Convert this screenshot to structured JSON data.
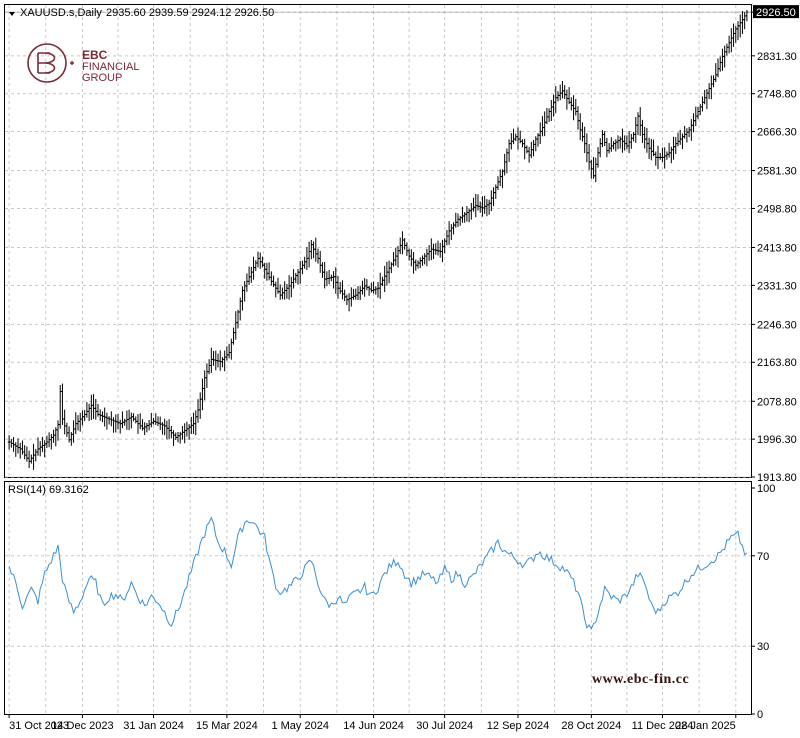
{
  "header": {
    "symbol": "XAUUSD.s,Daily",
    "ohlc": "2935.60 2939.59 2924.12 2926.50"
  },
  "logo": {
    "line1": "EBC",
    "line2": "FINANCIAL",
    "line3": "GROUP"
  },
  "watermark": "www.ebc-fin.cc",
  "colors": {
    "bars": "#000000",
    "rsi": "#3b8fd4",
    "grid": "#c8c8c8",
    "frame": "#000000",
    "brand": "#7b2a36"
  },
  "chart_data": [
    {
      "type": "ohlc",
      "title": "XAUUSD.s,Daily",
      "y_ticks": [
        "2926.50",
        "2831.30",
        "2748.80",
        "2666.30",
        "2581.30",
        "2498.80",
        "2413.80",
        "2331.30",
        "2246.30",
        "2163.80",
        "2078.80",
        "1996.30",
        "1913.80"
      ],
      "ylim": [
        1913.8,
        2942
      ],
      "current_price": "2926.50",
      "x_ticks": [
        "31 Oct 2023",
        "14 Dec 2023",
        "31 Jan 2024",
        "15 Mar 2024",
        "1 May 2024",
        "14 Jun 2024",
        "30 Jul 2024",
        "12 Sep 2024",
        "28 Oct 2024",
        "11 Dec 2024",
        "28 Jan 2025"
      ],
      "grid": true,
      "close_path": [
        [
          0,
          1990
        ],
        [
          5,
          1975
        ],
        [
          9,
          1948
        ],
        [
          13,
          1975
        ],
        [
          17,
          1990
        ],
        [
          20,
          2005
        ],
        [
          22,
          2028
        ],
        [
          23,
          2100
        ],
        [
          24,
          2040
        ],
        [
          27,
          1995
        ],
        [
          30,
          2030
        ],
        [
          34,
          2050
        ],
        [
          37,
          2070
        ],
        [
          40,
          2050
        ],
        [
          45,
          2040
        ],
        [
          50,
          2030
        ],
        [
          55,
          2045
        ],
        [
          60,
          2020
        ],
        [
          65,
          2035
        ],
        [
          70,
          2025
        ],
        [
          75,
          2000
        ],
        [
          79,
          2015
        ],
        [
          83,
          2030
        ],
        [
          85,
          2060
        ],
        [
          88,
          2130
        ],
        [
          91,
          2170
        ],
        [
          95,
          2165
        ],
        [
          99,
          2185
        ],
        [
          102,
          2250
        ],
        [
          105,
          2320
        ],
        [
          108,
          2350
        ],
        [
          112,
          2390
        ],
        [
          114,
          2375
        ],
        [
          118,
          2340
        ],
        [
          122,
          2310
        ],
        [
          126,
          2330
        ],
        [
          130,
          2360
        ],
        [
          134,
          2390
        ],
        [
          136,
          2420
        ],
        [
          139,
          2390
        ],
        [
          142,
          2345
        ],
        [
          146,
          2350
        ],
        [
          148,
          2325
        ],
        [
          152,
          2300
        ],
        [
          156,
          2310
        ],
        [
          160,
          2330
        ],
        [
          163,
          2320
        ],
        [
          166,
          2325
        ],
        [
          170,
          2360
        ],
        [
          174,
          2395
        ],
        [
          177,
          2430
        ],
        [
          180,
          2395
        ],
        [
          183,
          2375
        ],
        [
          187,
          2395
        ],
        [
          190,
          2410
        ],
        [
          194,
          2405
        ],
        [
          198,
          2450
        ],
        [
          202,
          2475
        ],
        [
          206,
          2490
        ],
        [
          210,
          2505
        ],
        [
          213,
          2500
        ],
        [
          216,
          2510
        ],
        [
          219,
          2545
        ],
        [
          222,
          2580
        ],
        [
          225,
          2640
        ],
        [
          228,
          2655
        ],
        [
          231,
          2640
        ],
        [
          234,
          2615
        ],
        [
          237,
          2650
        ],
        [
          240,
          2675
        ],
        [
          243,
          2710
        ],
        [
          246,
          2740
        ],
        [
          249,
          2755
        ],
        [
          252,
          2730
        ],
        [
          255,
          2710
        ],
        [
          257,
          2670
        ],
        [
          259,
          2640
        ],
        [
          261,
          2600
        ],
        [
          263,
          2570
        ],
        [
          265,
          2620
        ],
        [
          267,
          2660
        ],
        [
          269,
          2625
        ],
        [
          272,
          2640
        ],
        [
          275,
          2650
        ],
        [
          278,
          2635
        ],
        [
          281,
          2660
        ],
        [
          283,
          2700
        ],
        [
          285,
          2660
        ],
        [
          288,
          2630
        ],
        [
          291,
          2610
        ],
        [
          294,
          2610
        ],
        [
          297,
          2620
        ],
        [
          300,
          2640
        ],
        [
          303,
          2655
        ],
        [
          306,
          2670
        ],
        [
          309,
          2700
        ],
        [
          312,
          2730
        ],
        [
          315,
          2760
        ],
        [
          318,
          2790
        ],
        [
          321,
          2830
        ],
        [
          324,
          2860
        ],
        [
          327,
          2890
        ],
        [
          330,
          2910
        ],
        [
          332,
          2926.5
        ]
      ]
    },
    {
      "type": "line",
      "title": "RSI(14) 69.3162",
      "y_ticks": [
        "100",
        "70",
        "30",
        "0"
      ],
      "ylim": [
        0,
        100
      ],
      "grid": true,
      "series": [
        {
          "name": "RSI(14)",
          "values": [
            [
              0,
              65
            ],
            [
              3,
              58
            ],
            [
              6,
              48
            ],
            [
              10,
              55
            ],
            [
              13,
              50
            ],
            [
              16,
              62
            ],
            [
              19,
              68
            ],
            [
              22,
              74
            ],
            [
              24,
              60
            ],
            [
              26,
              52
            ],
            [
              29,
              45
            ],
            [
              32,
              50
            ],
            [
              36,
              60
            ],
            [
              39,
              58
            ],
            [
              42,
              48
            ],
            [
              45,
              52
            ],
            [
              48,
              53
            ],
            [
              51,
              50
            ],
            [
              55,
              58
            ],
            [
              58,
              52
            ],
            [
              61,
              48
            ],
            [
              64,
              52
            ],
            [
              67,
              50
            ],
            [
              70,
              45
            ],
            [
              73,
              40
            ],
            [
              76,
              46
            ],
            [
              79,
              54
            ],
            [
              82,
              63
            ],
            [
              85,
              72
            ],
            [
              88,
              80
            ],
            [
              91,
              86
            ],
            [
              94,
              76
            ],
            [
              97,
              72
            ],
            [
              100,
              66
            ],
            [
              103,
              78
            ],
            [
              106,
              85
            ],
            [
              109,
              86
            ],
            [
              112,
              82
            ],
            [
              115,
              78
            ],
            [
              118,
              64
            ],
            [
              121,
              54
            ],
            [
              124,
              55
            ],
            [
              127,
              57
            ],
            [
              130,
              60
            ],
            [
              133,
              64
            ],
            [
              136,
              68
            ],
            [
              139,
              58
            ],
            [
              142,
              50
            ],
            [
              145,
              48
            ],
            [
              148,
              52
            ],
            [
              151,
              48
            ],
            [
              154,
              52
            ],
            [
              157,
              54
            ],
            [
              160,
              56
            ],
            [
              163,
              52
            ],
            [
              166,
              56
            ],
            [
              169,
              62
            ],
            [
              172,
              66
            ],
            [
              175,
              68
            ],
            [
              178,
              62
            ],
            [
              181,
              58
            ],
            [
              184,
              60
            ],
            [
              187,
              62
            ],
            [
              190,
              60
            ],
            [
              193,
              58
            ],
            [
              196,
              64
            ],
            [
              199,
              60
            ],
            [
              202,
              62
            ],
            [
              205,
              58
            ],
            [
              208,
              60
            ],
            [
              211,
              64
            ],
            [
              214,
              68
            ],
            [
              217,
              72
            ],
            [
              220,
              76
            ],
            [
              223,
              72
            ],
            [
              226,
              70
            ],
            [
              229,
              68
            ],
            [
              232,
              66
            ],
            [
              235,
              68
            ],
            [
              238,
              72
            ],
            [
              241,
              70
            ],
            [
              244,
              68
            ],
            [
              247,
              66
            ],
            [
              250,
              64
            ],
            [
              253,
              60
            ],
            [
              256,
              54
            ],
            [
              259,
              42
            ],
            [
              262,
              36
            ],
            [
              265,
              45
            ],
            [
              268,
              55
            ],
            [
              271,
              52
            ],
            [
              274,
              50
            ],
            [
              277,
              52
            ],
            [
              280,
              56
            ],
            [
              283,
              62
            ],
            [
              286,
              58
            ],
            [
              289,
              48
            ],
            [
              292,
              45
            ],
            [
              295,
              50
            ],
            [
              298,
              52
            ],
            [
              301,
              54
            ],
            [
              304,
              58
            ],
            [
              307,
              62
            ],
            [
              310,
              64
            ],
            [
              313,
              66
            ],
            [
              316,
              68
            ],
            [
              319,
              70
            ],
            [
              322,
              74
            ],
            [
              325,
              78
            ],
            [
              328,
              79
            ],
            [
              330,
              74
            ],
            [
              332,
              69.3
            ]
          ]
        }
      ]
    }
  ]
}
